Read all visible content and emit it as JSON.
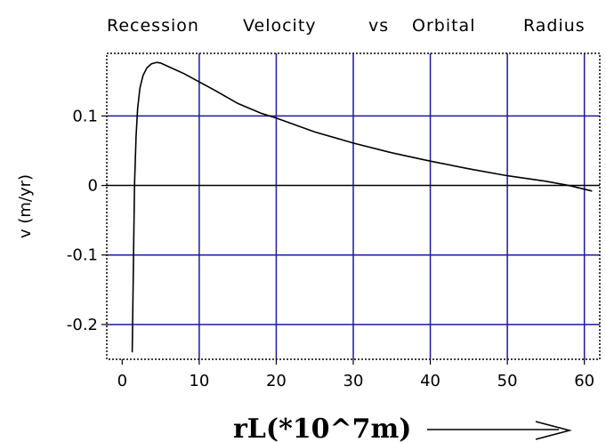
{
  "chart_data": {
    "type": "line",
    "title": "Recession  Velocity  vs  Orbital  Radius",
    "title_words": [
      "Recession",
      "Velocity",
      "vs",
      "Orbital",
      "Radius"
    ],
    "xlabel": "rL(*10^7m)",
    "ylabel": "v (m/yr)",
    "xlim": [
      -2,
      62
    ],
    "ylim": [
      -0.25,
      0.19
    ],
    "x_ticks": [
      0,
      10,
      20,
      30,
      40,
      50,
      60
    ],
    "x_tick_labels": [
      "0",
      "10",
      "20",
      "30",
      "40",
      "50",
      "60"
    ],
    "y_ticks": [
      -0.2,
      -0.1,
      0,
      0.1
    ],
    "y_tick_labels": [
      "-0.2",
      "-0.1",
      "0",
      "0.1"
    ],
    "grid": true,
    "grid_color": "#1a1a9c",
    "zero_line_color": "#000000",
    "line_color": "#000000",
    "series": [
      {
        "x": [
          1.3,
          1.45,
          1.6,
          1.8,
          2.0,
          2.3,
          2.7,
          3.2,
          3.8,
          4.5,
          5.0,
          6,
          8,
          10,
          12,
          15,
          18,
          20,
          25,
          30,
          35,
          40,
          45,
          50,
          55,
          58,
          61
        ],
        "values": [
          -0.24,
          -0.12,
          0.0,
          0.07,
          0.11,
          0.14,
          0.158,
          0.169,
          0.175,
          0.177,
          0.176,
          0.171,
          0.161,
          0.149,
          0.137,
          0.118,
          0.104,
          0.097,
          0.077,
          0.061,
          0.047,
          0.035,
          0.024,
          0.014,
          0.006,
          0.0,
          -0.008
        ]
      }
    ]
  }
}
